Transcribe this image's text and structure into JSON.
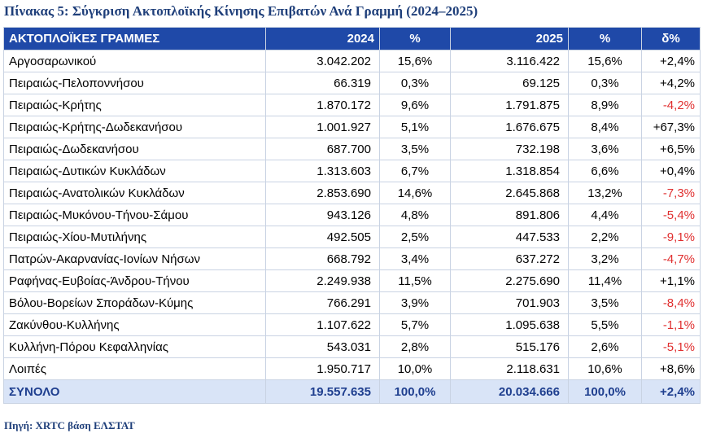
{
  "title": "Πίνακας 5: Σύγκριση Ακτοπλοϊκής Κίνησης Επιβατών Ανά Γραμμή (2024–2025)",
  "headers": [
    "ΑΚΤΟΠΛΟΪΚΕΣ ΓΡΑΜΜΕΣ",
    "2024",
    "%",
    "2025",
    "%",
    "δ%"
  ],
  "rows": [
    {
      "line": "Αργοσαρωνικού",
      "v2024": "3.042.202",
      "p2024": "15,6%",
      "v2025": "3.116.422",
      "p2025": "15,6%",
      "change": "+2,4%",
      "negative": false
    },
    {
      "line": "Πειραιώς-Πελοποννήσου",
      "v2024": "66.319",
      "p2024": "0,3%",
      "v2025": "69.125",
      "p2025": "0,3%",
      "change": "+4,2%",
      "negative": false
    },
    {
      "line": "Πειραιώς-Κρήτης",
      "v2024": "1.870.172",
      "p2024": "9,6%",
      "v2025": "1.791.875",
      "p2025": "8,9%",
      "change": "-4,2%",
      "negative": true
    },
    {
      "line": "Πειραιώς-Κρήτης-Δωδεκανήσου",
      "v2024": "1.001.927",
      "p2024": "5,1%",
      "v2025": "1.676.675",
      "p2025": "8,4%",
      "change": "+67,3%",
      "negative": false
    },
    {
      "line": "Πειραιώς-Δωδεκανήσου",
      "v2024": "687.700",
      "p2024": "3,5%",
      "v2025": "732.198",
      "p2025": "3,6%",
      "change": "+6,5%",
      "negative": false
    },
    {
      "line": "Πειραιώς-Δυτικών Κυκλάδων",
      "v2024": "1.313.603",
      "p2024": "6,7%",
      "v2025": "1.318.854",
      "p2025": "6,6%",
      "change": "+0,4%",
      "negative": false
    },
    {
      "line": "Πειραιώς-Ανατολικών Κυκλάδων",
      "v2024": "2.853.690",
      "p2024": "14,6%",
      "v2025": "2.645.868",
      "p2025": "13,2%",
      "change": "-7,3%",
      "negative": true
    },
    {
      "line": "Πειραιώς-Μυκόνου-Τήνου-Σάμου",
      "v2024": "943.126",
      "p2024": "4,8%",
      "v2025": "891.806",
      "p2025": "4,4%",
      "change": "-5,4%",
      "negative": true
    },
    {
      "line": "Πειραιώς-Χίου-Μυτιλήνης",
      "v2024": "492.505",
      "p2024": "2,5%",
      "v2025": "447.533",
      "p2025": "2,2%",
      "change": "-9,1%",
      "negative": true
    },
    {
      "line": "Πατρών-Ακαρνανίας-Ιονίων Νήσων",
      "v2024": "668.792",
      "p2024": "3,4%",
      "v2025": "637.272",
      "p2025": "3,2%",
      "change": "-4,7%",
      "negative": true
    },
    {
      "line": "Ραφήνας-Ευβοίας-Άνδρου-Τήνου",
      "v2024": "2.249.938",
      "p2024": "11,5%",
      "v2025": "2.275.690",
      "p2025": "11,4%",
      "change": "+1,1%",
      "negative": false
    },
    {
      "line": "Βόλου-Βορείων Σποράδων-Κύμης",
      "v2024": "766.291",
      "p2024": "3,9%",
      "v2025": "701.903",
      "p2025": "3,5%",
      "change": "-8,4%",
      "negative": true
    },
    {
      "line": "Ζακύνθου-Κυλλήνης",
      "v2024": "1.107.622",
      "p2024": "5,7%",
      "v2025": "1.095.638",
      "p2025": "5,5%",
      "change": "-1,1%",
      "negative": true
    },
    {
      "line": "Κυλλήνη-Πόρου Κεφαλληνίας",
      "v2024": "543.031",
      "p2024": "2,8%",
      "v2025": "515.176",
      "p2025": "2,6%",
      "change": "-5,1%",
      "negative": true
    },
    {
      "line": "Λοιπές",
      "v2024": "1.950.717",
      "p2024": "10,0%",
      "v2025": "2.118.631",
      "p2025": "10,6%",
      "change": "+8,6%",
      "negative": false
    }
  ],
  "total": {
    "line": "ΣΥΝΟΛΟ",
    "v2024": "19.557.635",
    "p2024": "100,0%",
    "v2025": "20.034.666",
    "p2025": "100,0%",
    "change": "+2,4%"
  },
  "source": "Πηγή: XRTC βάση ΕΛΣΤΑΤ",
  "colors": {
    "header_bg": "#1f49a8",
    "title": "#1f3f7a",
    "negative": "#e03030",
    "total_bg": "#d9e4f7"
  }
}
